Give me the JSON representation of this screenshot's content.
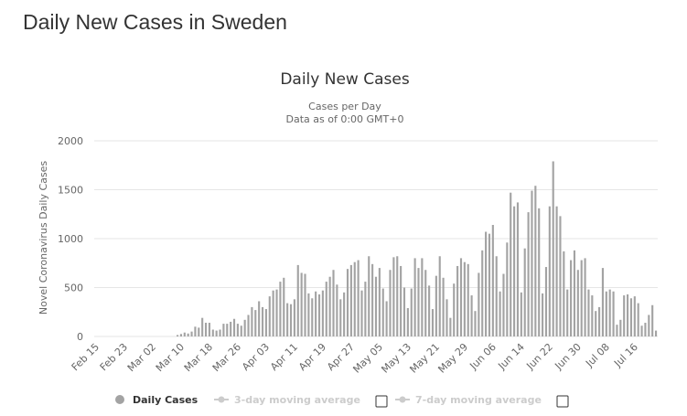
{
  "page": {
    "heading": "Daily New Cases in Sweden"
  },
  "colors": {
    "bar": "#a3a3a3",
    "grid": "#e6e6e6",
    "text": "#333333",
    "axis_text": "#666666",
    "legend_inactive": "#cccccc"
  },
  "legend": {
    "items": [
      {
        "label": "Daily Cases",
        "active": true
      },
      {
        "label": "3-day moving average",
        "active": false
      },
      {
        "label": "7-day moving average",
        "active": false
      }
    ]
  },
  "chart_data": {
    "type": "bar",
    "title": "Daily New Cases",
    "subtitle_line1": "Cases per Day",
    "subtitle_line2": "Data as of 0:00 GMT+0",
    "ylabel": "Novel Coronavirus Daily Cases",
    "xlabel": "",
    "ylim": [
      0,
      2000
    ],
    "yticks": [
      0,
      500,
      1000,
      1500,
      2000
    ],
    "grid": true,
    "legend_position": "bottom",
    "x_tick_labels": [
      "Feb 15",
      "Feb 23",
      "Mar 02",
      "Mar 10",
      "Mar 18",
      "Mar 26",
      "Apr 03",
      "Apr 11",
      "Apr 19",
      "Apr 27",
      "May 05",
      "May 13",
      "May 21",
      "May 29",
      "Jun 06",
      "Jun 14",
      "Jun 22",
      "Jun 30",
      "Jul 08",
      "Jul 16"
    ],
    "tick_every": 8,
    "start_date": "Feb 15",
    "series": [
      {
        "name": "Daily Cases",
        "values": [
          0,
          0,
          0,
          0,
          0,
          0,
          0,
          0,
          0,
          0,
          0,
          0,
          0,
          0,
          0,
          0,
          0,
          0,
          0,
          0,
          0,
          0,
          0,
          15,
          25,
          40,
          30,
          50,
          100,
          90,
          190,
          140,
          140,
          70,
          60,
          70,
          130,
          130,
          150,
          180,
          130,
          110,
          170,
          220,
          300,
          270,
          360,
          300,
          280,
          410,
          470,
          480,
          560,
          600,
          340,
          330,
          380,
          730,
          650,
          640,
          440,
          390,
          460,
          430,
          470,
          560,
          610,
          680,
          530,
          380,
          450,
          690,
          730,
          760,
          780,
          470,
          560,
          820,
          740,
          610,
          700,
          490,
          360,
          680,
          810,
          820,
          720,
          500,
          290,
          490,
          800,
          700,
          800,
          680,
          520,
          280,
          620,
          820,
          600,
          380,
          190,
          540,
          720,
          800,
          760,
          740,
          420,
          260,
          650,
          880,
          1070,
          1050,
          1140,
          820,
          460,
          640,
          960,
          1470,
          1330,
          1370,
          450,
          900,
          1270,
          1490,
          1540,
          1310,
          440,
          710,
          1330,
          1790,
          1330,
          1230,
          870,
          480,
          780,
          880,
          680,
          780,
          800,
          480,
          420,
          260,
          300,
          700,
          460,
          480,
          460,
          120,
          170,
          420,
          430,
          390,
          410,
          340,
          110,
          140,
          220,
          320,
          60
        ]
      }
    ]
  }
}
